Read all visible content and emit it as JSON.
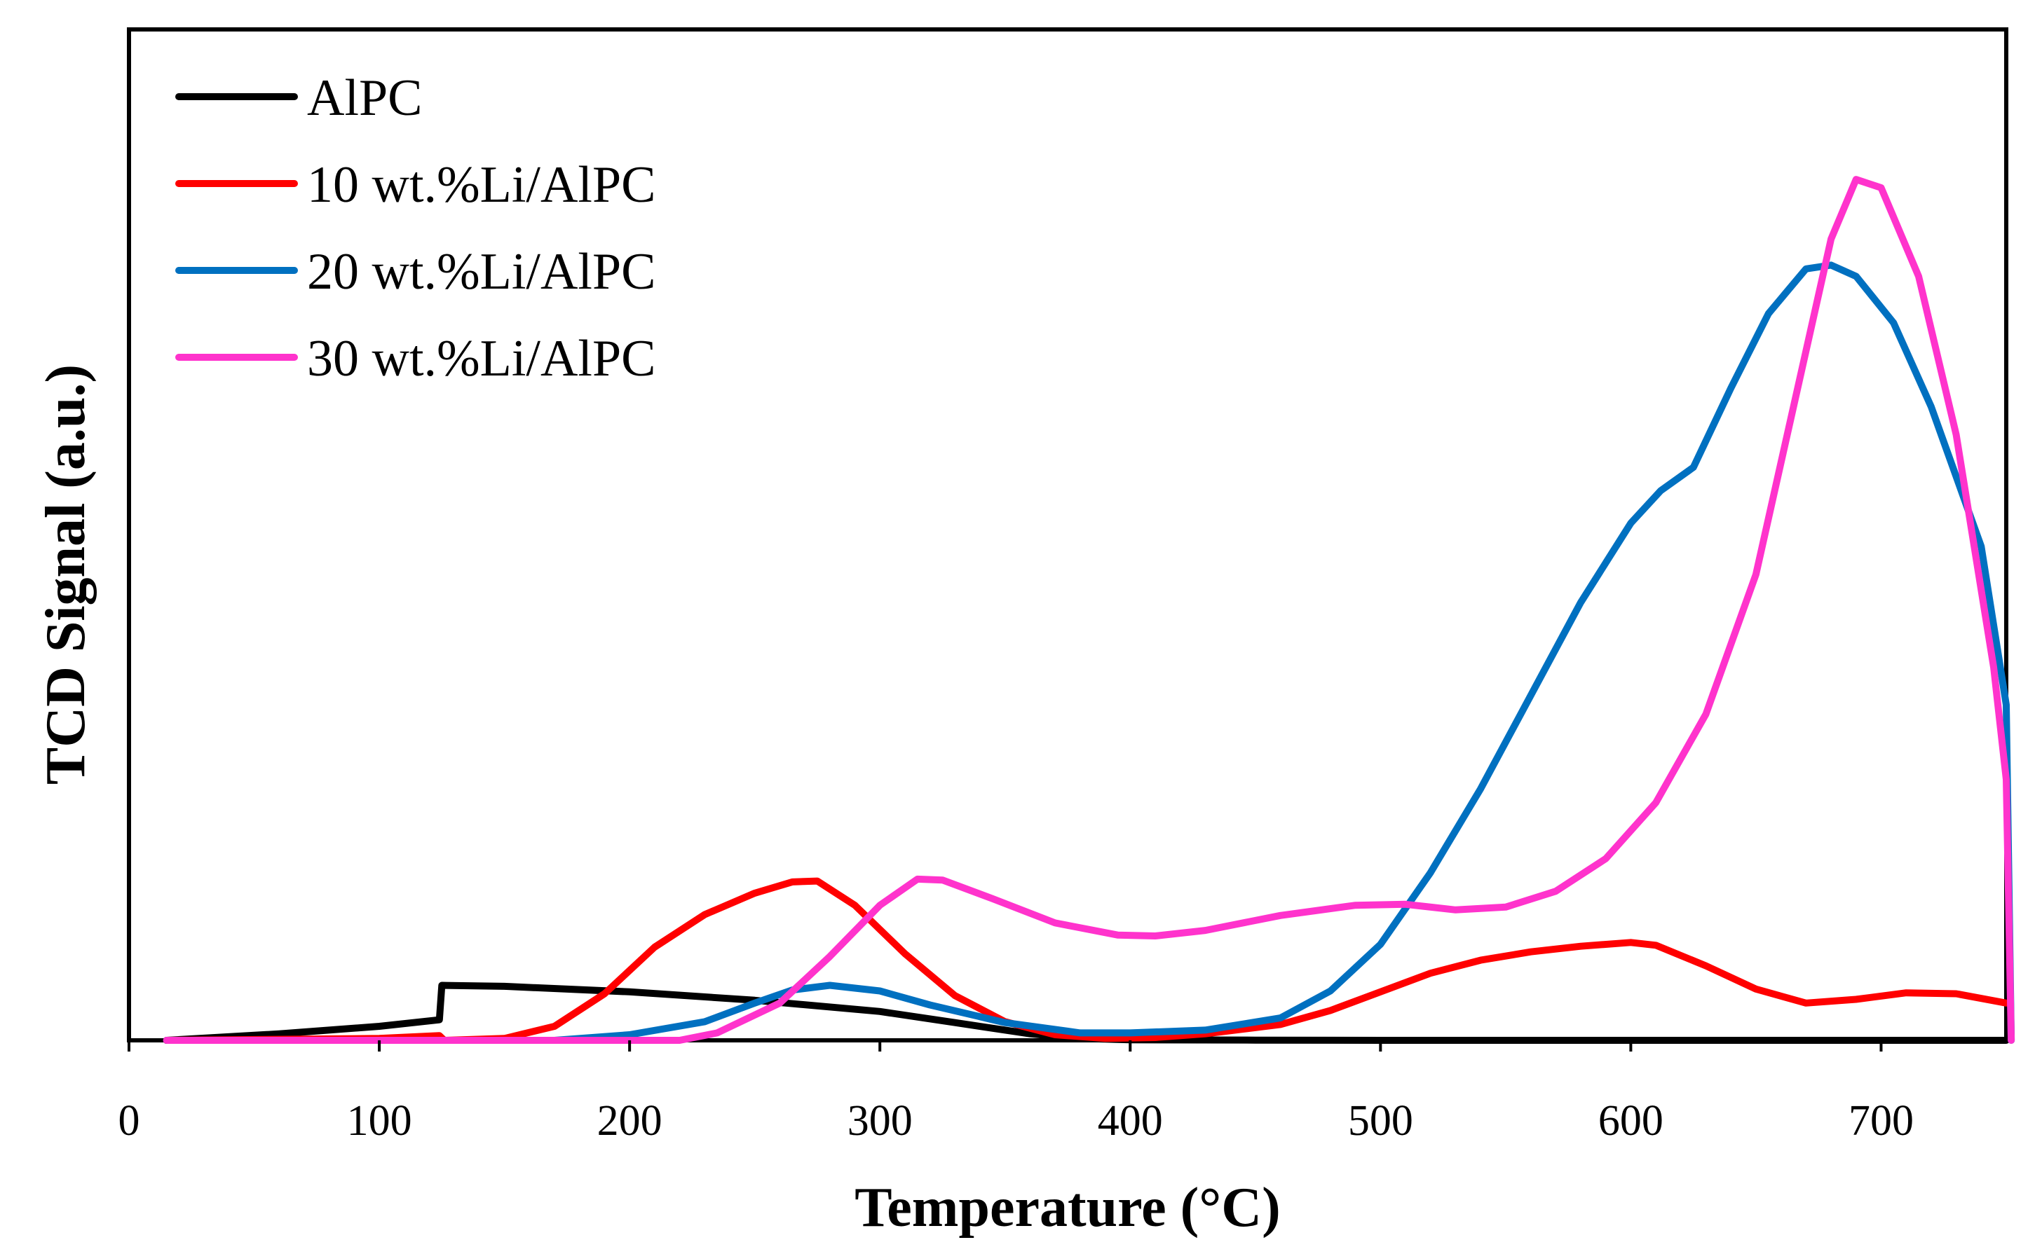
{
  "chart_data": {
    "type": "line",
    "title": "",
    "xlabel": "Temperature (°C)",
    "ylabel": "TCD Signal (a.u.)",
    "xlim": [
      0,
      750
    ],
    "ylim": [
      0,
      100
    ],
    "xticks": [
      0,
      100,
      200,
      300,
      400,
      500,
      600,
      700
    ],
    "xtick_labels": [
      "0",
      "100",
      "200",
      "300",
      "400",
      "500",
      "600",
      "700"
    ],
    "yticks_shown": false,
    "grid": false,
    "legend_position": "top-left",
    "series": [
      {
        "name": "AlPC",
        "color": "#000000",
        "points": [
          [
            15,
            0
          ],
          [
            60,
            0.7
          ],
          [
            100,
            1.5
          ],
          [
            124,
            2.2
          ],
          [
            125,
            5.9
          ],
          [
            150,
            5.8
          ],
          [
            200,
            5.2
          ],
          [
            250,
            4.3
          ],
          [
            300,
            3.1
          ],
          [
            330,
            1.9
          ],
          [
            360,
            0.7
          ],
          [
            380,
            0.2
          ],
          [
            400,
            0.05
          ],
          [
            450,
            0.02
          ],
          [
            500,
            0
          ],
          [
            600,
            0
          ],
          [
            700,
            0
          ],
          [
            750,
            0
          ]
        ]
      },
      {
        "name": "10 wt.%Li/AlPC",
        "color": "#ff0000",
        "points": [
          [
            15,
            0
          ],
          [
            100,
            0.2
          ],
          [
            124,
            0.5
          ],
          [
            126,
            0
          ],
          [
            150,
            0.2
          ],
          [
            170,
            1.5
          ],
          [
            190,
            5
          ],
          [
            210,
            10
          ],
          [
            230,
            13.5
          ],
          [
            250,
            15.8
          ],
          [
            265,
            17
          ],
          [
            275,
            17.1
          ],
          [
            290,
            14.5
          ],
          [
            310,
            9.3
          ],
          [
            330,
            4.8
          ],
          [
            350,
            2
          ],
          [
            370,
            0.6
          ],
          [
            390,
            0.2
          ],
          [
            410,
            0.3
          ],
          [
            430,
            0.7
          ],
          [
            460,
            1.7
          ],
          [
            480,
            3.2
          ],
          [
            500,
            5.2
          ],
          [
            520,
            7.2
          ],
          [
            540,
            8.6
          ],
          [
            560,
            9.5
          ],
          [
            580,
            10.1
          ],
          [
            600,
            10.5
          ],
          [
            610,
            10.2
          ],
          [
            630,
            8
          ],
          [
            650,
            5.5
          ],
          [
            670,
            4
          ],
          [
            690,
            4.4
          ],
          [
            710,
            5.1
          ],
          [
            730,
            5
          ],
          [
            750,
            4
          ]
        ]
      },
      {
        "name": "20 wt.%Li/AlPC",
        "color": "#0070c0",
        "points": [
          [
            15,
            0
          ],
          [
            170,
            0
          ],
          [
            200,
            0.6
          ],
          [
            230,
            2
          ],
          [
            250,
            4
          ],
          [
            265,
            5.4
          ],
          [
            280,
            5.9
          ],
          [
            300,
            5.3
          ],
          [
            320,
            3.8
          ],
          [
            350,
            1.9
          ],
          [
            380,
            0.8
          ],
          [
            400,
            0.8
          ],
          [
            430,
            1.1
          ],
          [
            460,
            2.4
          ],
          [
            480,
            5.3
          ],
          [
            500,
            10.3
          ],
          [
            520,
            18
          ],
          [
            540,
            27
          ],
          [
            560,
            37
          ],
          [
            580,
            47
          ],
          [
            600,
            55.5
          ],
          [
            612,
            59
          ],
          [
            625,
            61.5
          ],
          [
            640,
            70
          ],
          [
            655,
            78
          ],
          [
            670,
            82.8
          ],
          [
            680,
            83.2
          ],
          [
            690,
            82
          ],
          [
            705,
            77
          ],
          [
            720,
            68
          ],
          [
            740,
            53
          ],
          [
            750,
            36
          ],
          [
            752,
            0
          ]
        ]
      },
      {
        "name": "30 wt.%Li/AlPC",
        "color": "#ff33cc",
        "points": [
          [
            15,
            0
          ],
          [
            220,
            0
          ],
          [
            235,
            0.8
          ],
          [
            260,
            4
          ],
          [
            280,
            9
          ],
          [
            300,
            14.5
          ],
          [
            315,
            17.3
          ],
          [
            325,
            17.2
          ],
          [
            345,
            15.2
          ],
          [
            370,
            12.6
          ],
          [
            395,
            11.3
          ],
          [
            410,
            11.2
          ],
          [
            430,
            11.8
          ],
          [
            460,
            13.4
          ],
          [
            490,
            14.5
          ],
          [
            510,
            14.6
          ],
          [
            530,
            14
          ],
          [
            550,
            14.3
          ],
          [
            570,
            16
          ],
          [
            590,
            19.5
          ],
          [
            610,
            25.5
          ],
          [
            630,
            35
          ],
          [
            650,
            50
          ],
          [
            665,
            68
          ],
          [
            680,
            86
          ],
          [
            690,
            92.4
          ],
          [
            700,
            91.5
          ],
          [
            715,
            82
          ],
          [
            730,
            65
          ],
          [
            745,
            40
          ],
          [
            750,
            28
          ],
          [
            752,
            0
          ]
        ]
      }
    ]
  }
}
